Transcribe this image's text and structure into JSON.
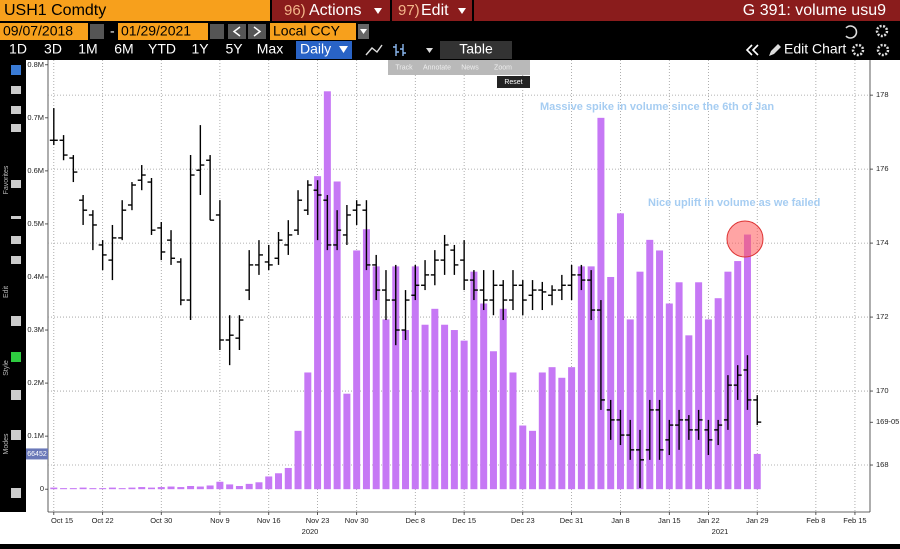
{
  "toolbar": {
    "security": "USH1 Comdty",
    "menus": [
      {
        "number": "96)",
        "label": "Actions"
      },
      {
        "number": "97)",
        "label": "Edit"
      }
    ],
    "page": "G 391: volume usu9",
    "start_date": "09/07/2018",
    "separator": "-",
    "end_date": "01/29/2021",
    "currency": "Local CCY",
    "periods": [
      "1D",
      "3D",
      "1M",
      "6M",
      "YTD",
      "1Y",
      "5Y",
      "Max"
    ],
    "frequency": "Daily",
    "table": "Table",
    "edit_chart": "Edit Chart"
  },
  "popup": {
    "tools": [
      "Track",
      "Annotate",
      "News",
      "Zoom"
    ],
    "reset": "Reset"
  },
  "sidebar": {
    "sections": [
      "Favorites",
      "Edit",
      "Style",
      "Modes"
    ]
  },
  "chart_data": {
    "type": "bar",
    "grid": true,
    "categories": [
      "Oct 15",
      null,
      null,
      null,
      null,
      "Oct 22",
      null,
      null,
      null,
      null,
      null,
      "Oct 30",
      null,
      null,
      null,
      null,
      null,
      "Nov 9",
      null,
      null,
      null,
      null,
      "Nov 16",
      null,
      null,
      null,
      null,
      "Nov 23",
      null,
      null,
      null,
      "Nov 30",
      null,
      null,
      null,
      null,
      null,
      "Dec 8",
      null,
      null,
      null,
      null,
      "Dec 15",
      null,
      null,
      null,
      null,
      null,
      "Dec 23",
      null,
      null,
      null,
      null,
      "Dec 31",
      null,
      null,
      null,
      null,
      "Jan 8",
      null,
      null,
      null,
      null,
      "Jan 15",
      null,
      null,
      null,
      "Jan 22",
      null,
      null,
      null,
      null,
      "Jan 29",
      null,
      null,
      null,
      null,
      null,
      "Feb 8",
      null,
      null,
      null,
      "Feb 15"
    ],
    "year_labels": [
      "2020",
      "2021"
    ],
    "ylim": [
      -43000,
      809000
    ],
    "yticks": [
      0,
      {
        "value": 100000,
        "label": "0.1M"
      },
      {
        "value": 200000,
        "label": "0.2M"
      },
      {
        "value": 300000,
        "label": "0.3M"
      },
      {
        "value": 400000,
        "label": "0.4M"
      },
      {
        "value": 500000,
        "label": "0.5M"
      },
      {
        "value": 600000,
        "label": "0.6M"
      },
      {
        "value": 700000,
        "label": "0.7M"
      },
      {
        "value": 800000,
        "label": "0.8M"
      }
    ],
    "y2lim": [
      166.73,
      178.95
    ],
    "y2ticks": [
      168,
      170,
      172,
      174,
      176,
      178
    ],
    "series": [
      {
        "type": "bar",
        "axis": "y",
        "color": "#c678f5",
        "values": [
          3000,
          2000,
          2000,
          3000,
          2000,
          2000,
          3000,
          2000,
          3000,
          4000,
          3000,
          4000,
          5000,
          4000,
          6000,
          5000,
          7000,
          14000,
          9000,
          6000,
          10000,
          13000,
          24000,
          30000,
          40000,
          110000,
          220000,
          590000,
          750000,
          580000,
          180000,
          450000,
          490000,
          420000,
          320000,
          420000,
          300000,
          420000,
          310000,
          340000,
          310000,
          300000,
          280000,
          410000,
          350000,
          260000,
          340000,
          220000,
          120000,
          110000,
          220000,
          230000,
          210000,
          230000,
          420000,
          420000,
          700000,
          400000,
          520000,
          320000,
          410000,
          470000,
          450000,
          350000,
          390000,
          290000,
          390000,
          320000,
          360000,
          410000,
          430000,
          480000,
          66452,
          null,
          null,
          null,
          null,
          null,
          null,
          null,
          null,
          null,
          null
        ]
      },
      {
        "type": "ohlc",
        "axis": "y2",
        "color": "#000000",
        "open": [
          176.78,
          176.78,
          176.3,
          175.16,
          174.76,
          173.95,
          173.54,
          174.14,
          175.03,
          175.7,
          175.65,
          174.41,
          174.08,
          173.49,
          172.46,
          175.97,
          176.24,
          174.76,
          171.38,
          171.43,
          172.73,
          173.41,
          173.49,
          173.59,
          173.95,
          174.35,
          174.89,
          175.43,
          175.16,
          173.95,
          174.22,
          174.89,
          174.89,
          173.41,
          172.73,
          172.46,
          171.65,
          172.59,
          172.86,
          173.14,
          173.54,
          173.81,
          173.54,
          173.0,
          172.73,
          172.46,
          172.86,
          172.46,
          172.86,
          172.59,
          172.73,
          172.59,
          172.73,
          172.86,
          173.14,
          173.0,
          172.19,
          169.49,
          169.22,
          168.81,
          168.41,
          168.41,
          169.49,
          168.68,
          169.08,
          169.22,
          168.95,
          168.95,
          168.95,
          169.22,
          170.16,
          170.57,
          169.76,
          null,
          null,
          null,
          null,
          null,
          null,
          null,
          null,
          null,
          null
        ],
        "high": [
          177.65,
          176.92,
          176.38,
          175.3,
          174.89,
          174.08,
          174.49,
          175.16,
          175.65,
          176.11,
          175.76,
          174.57,
          174.35,
          173.59,
          176.38,
          177.19,
          176.38,
          175.16,
          172.05,
          172.05,
          173.81,
          174.08,
          173.95,
          174.3,
          174.62,
          175.43,
          175.7,
          175.7,
          175.3,
          174.89,
          175.03,
          175.16,
          175.16,
          173.68,
          173.27,
          173.41,
          172.73,
          173.41,
          173.54,
          173.81,
          174.22,
          173.95,
          174.08,
          173.27,
          173.27,
          173.27,
          173.0,
          173.27,
          173.0,
          173.0,
          172.95,
          172.86,
          173.14,
          173.41,
          173.41,
          173.27,
          172.46,
          169.76,
          169.49,
          169.22,
          168.95,
          169.76,
          169.76,
          169.22,
          169.49,
          169.35,
          169.49,
          169.22,
          169.22,
          170.43,
          170.7,
          170.97,
          169.89,
          null,
          null,
          null,
          null,
          null,
          null,
          null,
          null,
          null,
          null
        ],
        "low": [
          176.65,
          176.24,
          175.65,
          174.49,
          173.81,
          173.27,
          173.0,
          174.08,
          174.89,
          175.43,
          174.22,
          173.54,
          173.41,
          172.32,
          171.92,
          175.3,
          174.62,
          171.11,
          170.7,
          171.11,
          172.46,
          173.14,
          173.27,
          173.41,
          173.68,
          174.22,
          174.76,
          174.08,
          173.81,
          173.81,
          173.95,
          174.49,
          173.27,
          172.46,
          171.92,
          171.24,
          171.38,
          172.46,
          172.73,
          172.86,
          173.14,
          173.14,
          172.73,
          172.46,
          172.19,
          172.05,
          171.92,
          172.19,
          172.05,
          172.19,
          172.19,
          172.32,
          172.46,
          172.46,
          172.73,
          171.92,
          169.49,
          168.68,
          168.54,
          168.14,
          167.38,
          168.14,
          168.14,
          168.27,
          168.41,
          168.68,
          168.68,
          168.27,
          168.54,
          168.95,
          169.76,
          169.49,
          169.08,
          null,
          null,
          null,
          null,
          null,
          null,
          null,
          null,
          null,
          null
        ],
        "close": [
          176.78,
          176.38,
          175.92,
          174.89,
          174.49,
          173.68,
          174.14,
          174.89,
          175.57,
          175.84,
          174.35,
          173.76,
          173.59,
          172.46,
          175.84,
          176.11,
          174.62,
          171.38,
          171.51,
          171.92,
          173.41,
          173.68,
          173.41,
          174.08,
          174.22,
          175.16,
          175.57,
          175.3,
          173.95,
          174.35,
          174.76,
          175.03,
          173.41,
          172.73,
          172.46,
          171.65,
          172.46,
          172.86,
          173.14,
          173.54,
          173.95,
          173.41,
          173.0,
          172.73,
          172.46,
          172.86,
          172.46,
          172.86,
          172.46,
          172.73,
          172.68,
          172.73,
          172.86,
          173.14,
          173.0,
          172.19,
          169.76,
          169.22,
          168.81,
          168.41,
          168.14,
          169.49,
          168.41,
          169.08,
          169.22,
          168.95,
          169.22,
          168.68,
          169.08,
          170.16,
          170.43,
          169.76,
          169.16,
          null,
          null,
          null,
          null,
          null,
          null,
          null,
          null,
          null,
          null
        ],
        "last_label": {
          "value": 169.15625,
          "label": "169-05"
        }
      }
    ],
    "annotations": [
      "Massive spike in volume since the 6th of Jan",
      "Nice uplift in volume as we failed"
    ]
  }
}
